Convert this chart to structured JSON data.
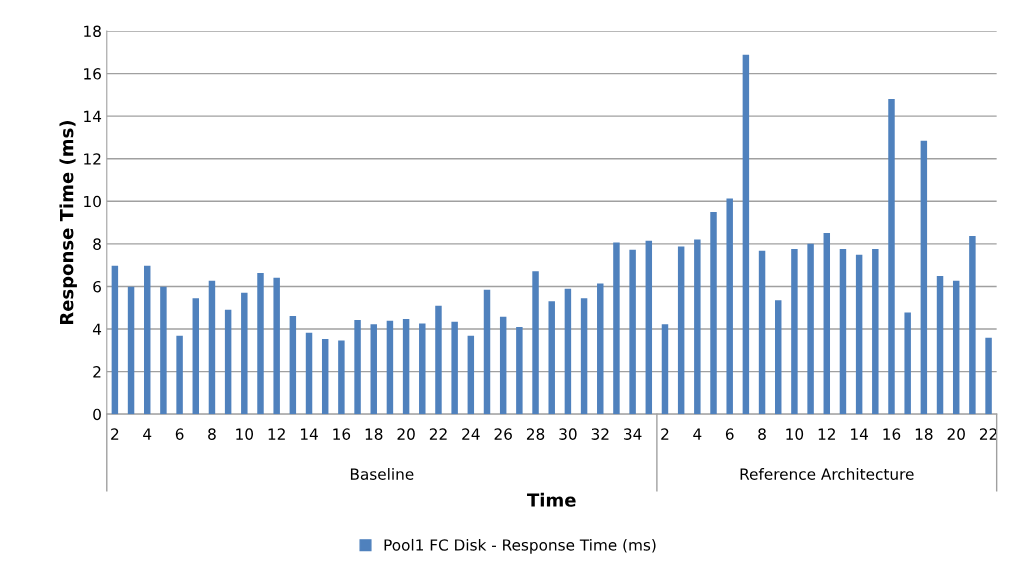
{
  "chart_data": {
    "type": "bar",
    "xlabel": "Time",
    "ylabel": "Response Time (ms)",
    "categories": [
      "2",
      null,
      "4",
      null,
      "6",
      null,
      "8",
      null,
      "10",
      null,
      "12",
      null,
      "14",
      null,
      "16",
      null,
      "18",
      null,
      "20",
      null,
      "22",
      null,
      "24",
      null,
      "26",
      null,
      "28",
      null,
      "30",
      null,
      "32",
      null,
      "34",
      null,
      "2",
      null,
      "4",
      null,
      "6",
      null,
      "8",
      null,
      "10",
      null,
      "12",
      null,
      "14",
      null,
      "16",
      null,
      "18",
      null,
      "20",
      null,
      "22"
    ],
    "series": [
      {
        "name": "Pool1 FC Disk - Response Time (ms)",
        "color": "#4f81bd",
        "values": [
          6.97,
          5.99,
          6.97,
          5.99,
          3.68,
          5.45,
          6.27,
          4.9,
          5.7,
          6.63,
          6.41,
          4.61,
          3.82,
          3.53,
          3.46,
          4.42,
          4.23,
          4.39,
          4.47,
          4.26,
          5.09,
          4.34,
          3.68,
          5.85,
          4.58,
          4.09,
          6.71,
          5.31,
          5.89,
          5.45,
          6.14,
          8.07,
          7.73,
          8.15,
          null,
          null,
          null,
          null,
          null,
          null,
          null,
          null,
          null,
          null,
          null,
          null,
          null,
          null,
          null,
          null,
          null,
          null,
          null,
          null,
          null
        ]
      },
      {
        "color": "#4f81bd",
        "values": [
          null,
          null,
          null,
          null,
          null,
          null,
          null,
          null,
          null,
          null,
          null,
          null,
          null,
          null,
          null,
          null,
          null,
          null,
          null,
          null,
          null,
          null,
          null,
          null,
          null,
          null,
          null,
          null,
          null,
          null,
          null,
          null,
          null,
          null,
          4.23,
          7.88,
          8.2,
          9.5,
          10.13,
          16.88,
          7.68,
          5.35,
          7.76,
          8.01,
          8.51,
          7.76,
          7.49,
          7.76,
          14.81,
          4.78,
          12.84,
          6.49,
          6.27,
          8.37,
          3.59
        ]
      }
    ],
    "annotations": [
      "Baseline",
      "Reference Architecture"
    ],
    "ylim": [
      0,
      18
    ],
    "yticks": [
      0,
      2,
      4,
      6,
      8,
      10,
      12,
      14,
      16,
      18
    ],
    "grid": "y",
    "legend": "bottom"
  }
}
